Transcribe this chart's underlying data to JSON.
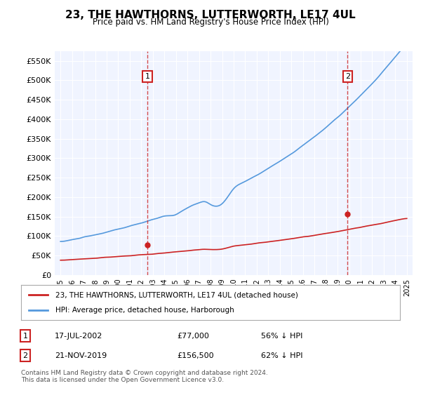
{
  "title": "23, THE HAWTHORNS, LUTTERWORTH, LE17 4UL",
  "subtitle": "Price paid vs. HM Land Registry's House Price Index (HPI)",
  "xlabel": "",
  "ylabel": "",
  "ylim": [
    0,
    575000
  ],
  "yticks": [
    0,
    50000,
    100000,
    150000,
    200000,
    250000,
    300000,
    350000,
    400000,
    450000,
    500000,
    550000
  ],
  "ytick_labels": [
    "£0",
    "£50K",
    "£100K",
    "£150K",
    "£200K",
    "£250K",
    "£300K",
    "£350K",
    "£400K",
    "£450K",
    "£500K",
    "£550K"
  ],
  "background_color": "#ffffff",
  "plot_bg_color": "#f0f4ff",
  "grid_color": "#ffffff",
  "hpi_color": "#5599dd",
  "price_color": "#cc2222",
  "marker1_date_idx": 7.6,
  "marker1_price": 77000,
  "marker2_date_idx": 24.9,
  "marker2_price": 156500,
  "legend_items": [
    {
      "label": "23, THE HAWTHORNS, LUTTERWORTH, LE17 4UL (detached house)",
      "color": "#cc2222"
    },
    {
      "label": "HPI: Average price, detached house, Harborough",
      "color": "#5599dd"
    }
  ],
  "table_rows": [
    {
      "num": "1",
      "date": "17-JUL-2002",
      "price": "£77,000",
      "pct": "56% ↓ HPI"
    },
    {
      "num": "2",
      "date": "21-NOV-2019",
      "price": "£156,500",
      "pct": "62% ↓ HPI"
    }
  ],
  "footnote": "Contains HM Land Registry data © Crown copyright and database right 2024.\nThis data is licensed under the Open Government Licence v3.0.",
  "xstart_year": 1995,
  "xend_year": 2025
}
